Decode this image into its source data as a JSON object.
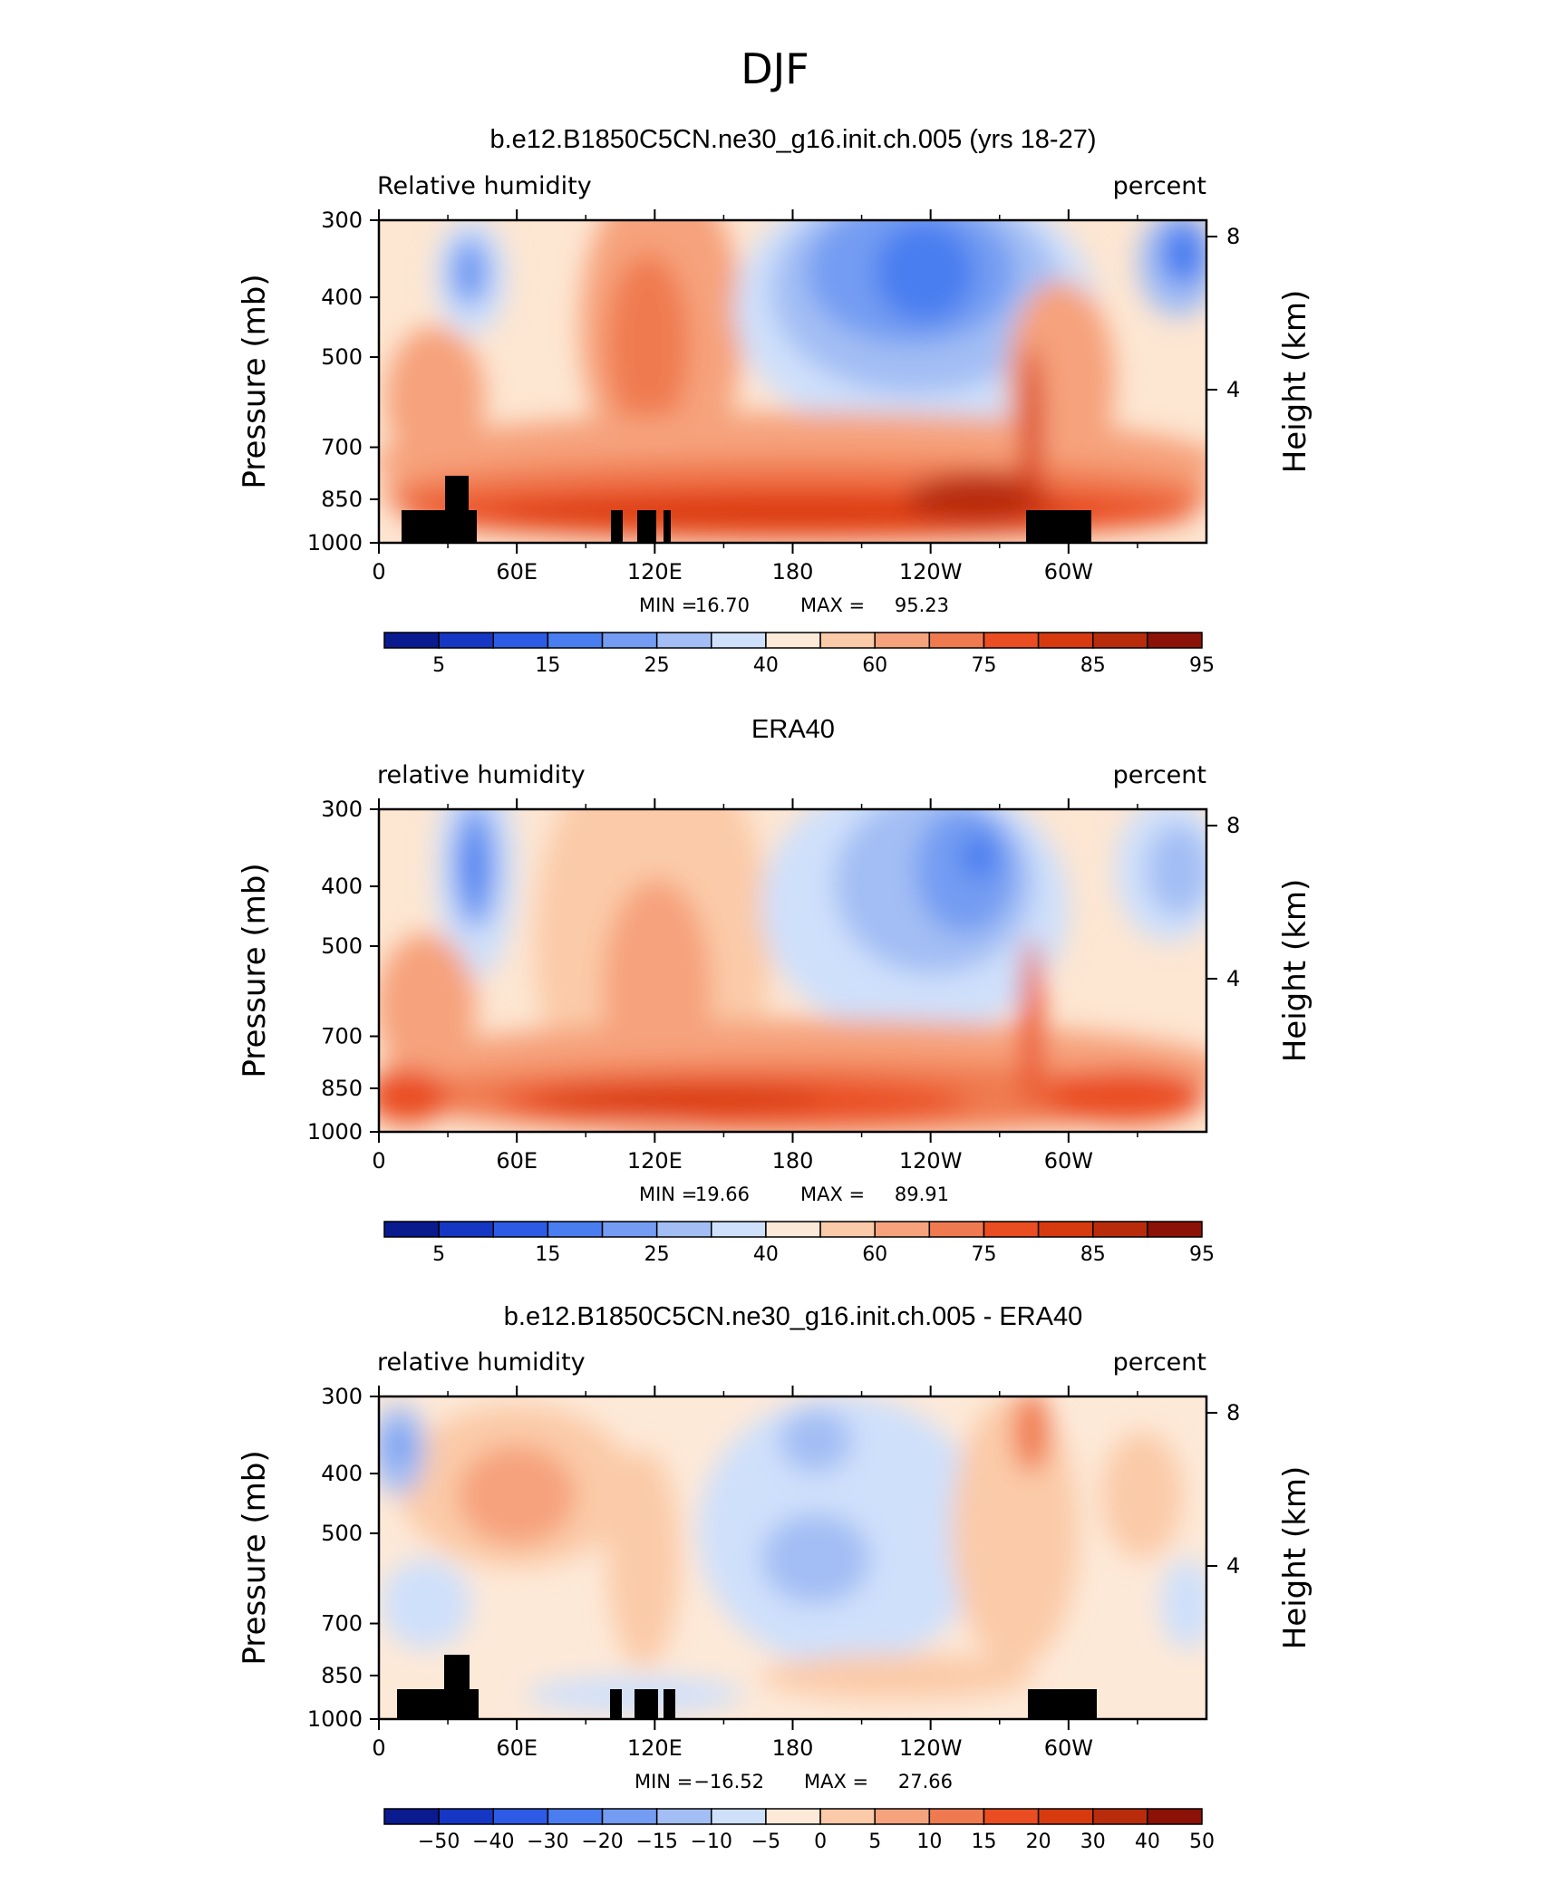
{
  "figure": {
    "title": "DJF"
  },
  "axes_common": {
    "left_label": "Pressure (mb)",
    "right_label": "Height (km)",
    "pressure_ticks": [
      "300",
      "400",
      "500",
      "700",
      "850",
      "1000"
    ],
    "height_ticks": [
      "8",
      "4"
    ],
    "lon_ticks": [
      "0",
      "60E",
      "120E",
      "180",
      "120W",
      "60W"
    ]
  },
  "panels": [
    {
      "title": "b.e12.B1850C5CN.ne30_g16.init.ch.005 (yrs 18-27)",
      "left_label": "Relative humidity",
      "right_label": "percent",
      "min_label": "MIN =",
      "min_value": "16.70",
      "max_label": "MAX =",
      "max_value": "95.23",
      "colorbar_labels": [
        "5",
        "15",
        "25",
        "40",
        "60",
        "75",
        "85",
        "95"
      ]
    },
    {
      "title": "ERA40",
      "left_label": "relative humidity",
      "right_label": "percent",
      "min_label": "MIN =",
      "min_value": "19.66",
      "max_label": "MAX =",
      "max_value": "89.91",
      "colorbar_labels": [
        "5",
        "15",
        "25",
        "40",
        "60",
        "75",
        "85",
        "95"
      ]
    },
    {
      "title": "b.e12.B1850C5CN.ne30_g16.init.ch.005 - ERA40",
      "left_label": "relative humidity",
      "right_label": "percent",
      "min_label": "MIN =",
      "min_value": "−16.52",
      "max_label": "MAX =",
      "max_value": "27.66",
      "colorbar_labels": [
        "−50",
        "−40",
        "−30",
        "−20",
        "−15",
        "−10",
        "−5",
        "0",
        "5",
        "10",
        "15",
        "20",
        "30",
        "40",
        "50"
      ]
    }
  ],
  "colorbar_palette": [
    "#0a1a8f",
    "#1537c4",
    "#2d5be6",
    "#4a7ef0",
    "#739cf2",
    "#a3bef4",
    "#cfe0fb",
    "#fde9d8",
    "#fbcaa8",
    "#f6a27c",
    "#f07a50",
    "#ea4d22",
    "#d83a10",
    "#b82c0c",
    "#8c1208"
  ],
  "chart_data": [
    {
      "type": "heatmap",
      "title": "b.e12.B1850C5CN.ne30_g16.init.ch.005 (yrs 18-27)",
      "xlabel": "",
      "ylabel": "Pressure (mb)",
      "y2label": "Height (km)",
      "x_ticks": [
        "0",
        "60E",
        "120E",
        "180",
        "120W",
        "60W"
      ],
      "y_ticks": [
        300,
        400,
        500,
        700,
        850,
        1000
      ],
      "y2_ticks": [
        8,
        4
      ],
      "levels": [
        5,
        10,
        15,
        20,
        25,
        30,
        40,
        50,
        60,
        70,
        75,
        80,
        85,
        90,
        95
      ],
      "min": 16.7,
      "max": 95.23,
      "units": "percent"
    },
    {
      "type": "heatmap",
      "title": "ERA40",
      "xlabel": "",
      "ylabel": "Pressure (mb)",
      "y2label": "Height (km)",
      "x_ticks": [
        "0",
        "60E",
        "120E",
        "180",
        "120W",
        "60W"
      ],
      "y_ticks": [
        300,
        400,
        500,
        700,
        850,
        1000
      ],
      "y2_ticks": [
        8,
        4
      ],
      "levels": [
        5,
        10,
        15,
        20,
        25,
        30,
        40,
        50,
        60,
        70,
        75,
        80,
        85,
        90,
        95
      ],
      "min": 19.66,
      "max": 89.91,
      "units": "percent"
    },
    {
      "type": "heatmap",
      "title": "b.e12.B1850C5CN.ne30_g16.init.ch.005 - ERA40",
      "xlabel": "",
      "ylabel": "Pressure (mb)",
      "y2label": "Height (km)",
      "x_ticks": [
        "0",
        "60E",
        "120E",
        "180",
        "120W",
        "60W"
      ],
      "y_ticks": [
        300,
        400,
        500,
        700,
        850,
        1000
      ],
      "y2_ticks": [
        8,
        4
      ],
      "levels": [
        -50,
        -40,
        -30,
        -20,
        -15,
        -10,
        -5,
        0,
        5,
        10,
        15,
        20,
        30,
        40,
        50
      ],
      "min": -16.52,
      "max": 27.66,
      "units": "percent"
    }
  ]
}
